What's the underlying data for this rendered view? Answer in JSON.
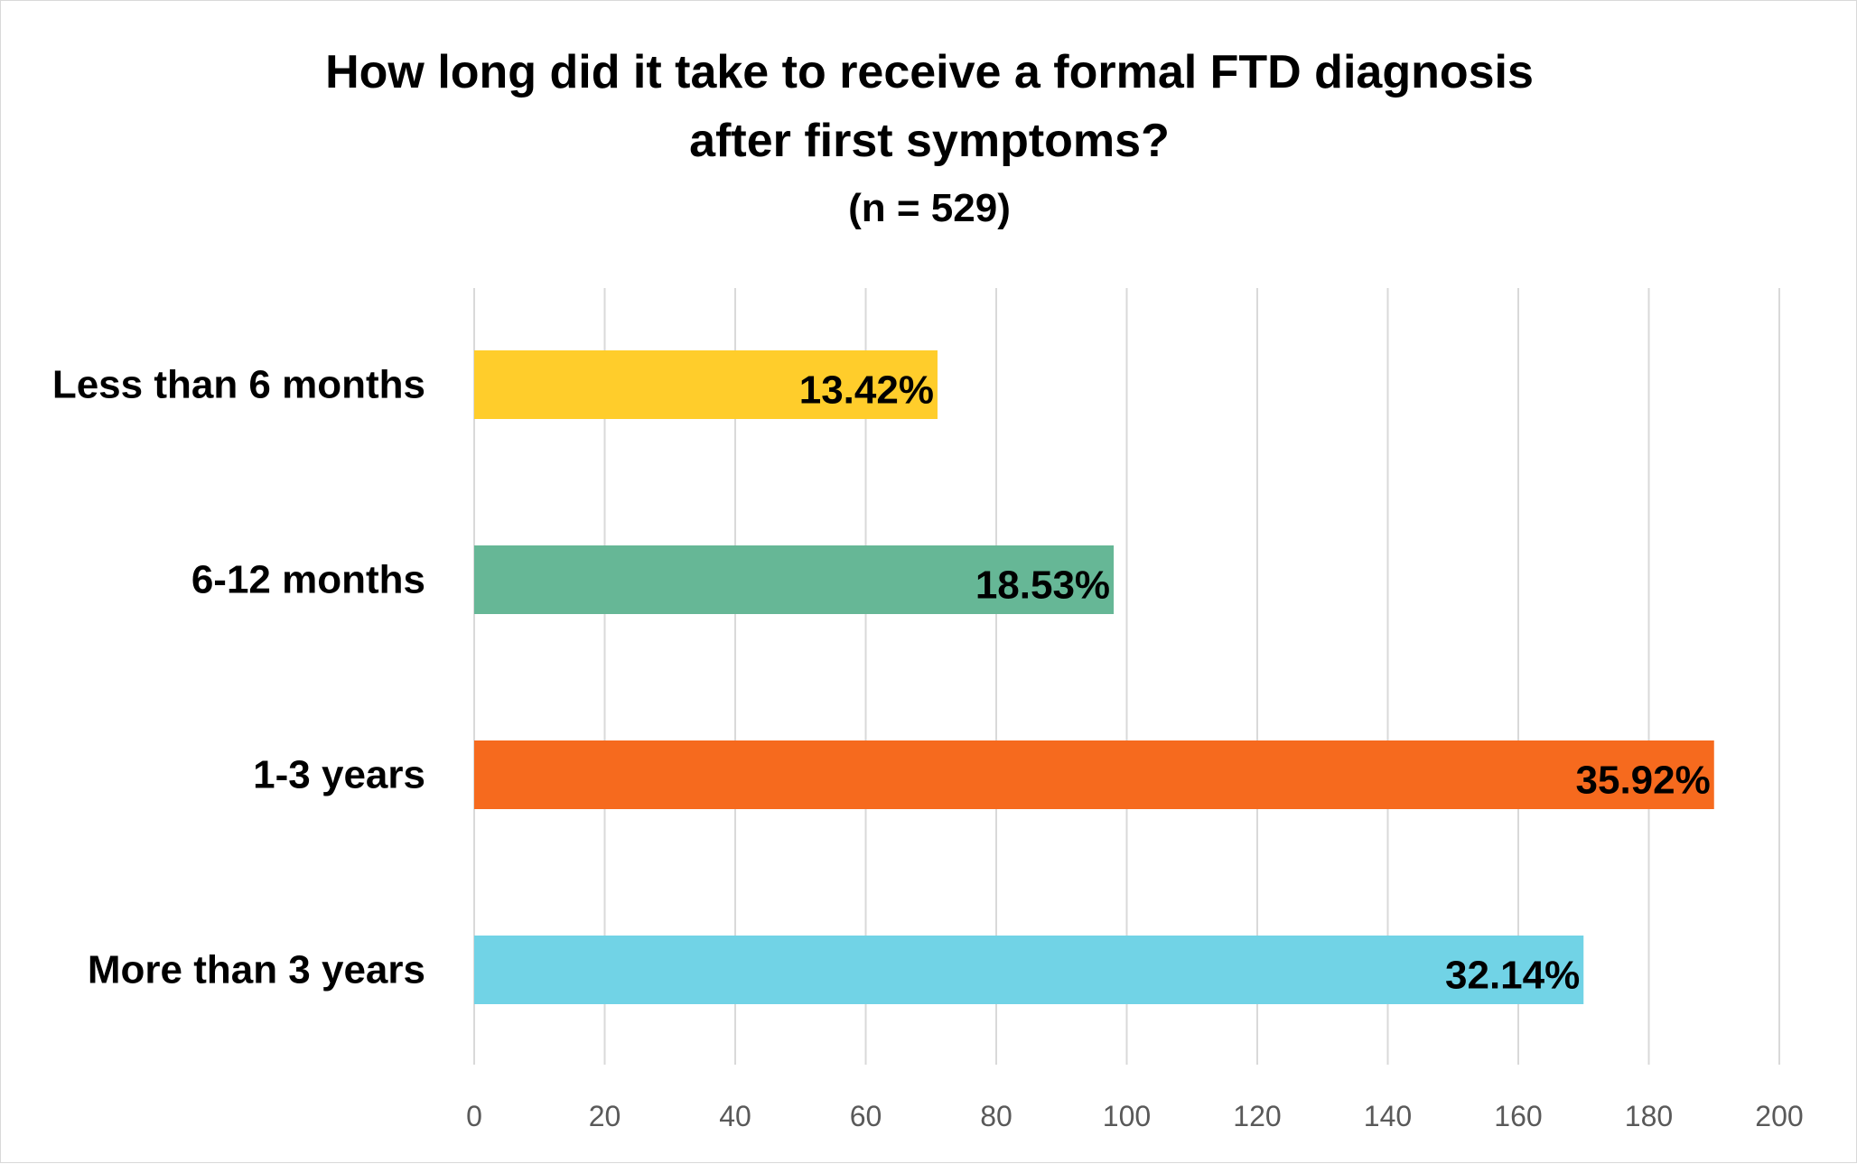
{
  "chart_data": {
    "type": "bar",
    "orientation": "horizontal",
    "title_lines": [
      "How long did it take to receive a formal FTD diagnosis",
      "after first symptoms?"
    ],
    "subtitle": "(n = 529)",
    "categories": [
      "Less than 6 months",
      "6-12 months",
      "1-3 years",
      "More than 3 years"
    ],
    "values": [
      71,
      98,
      190,
      170
    ],
    "data_labels": [
      "13.42%",
      "18.53%",
      "35.92%",
      "32.14%"
    ],
    "colors": [
      "#FFCD2B",
      "#66B796",
      "#F66A1E",
      "#71D3E6"
    ],
    "xlim": [
      0,
      200
    ],
    "xticks": [
      0,
      20,
      40,
      60,
      80,
      100,
      120,
      140,
      160,
      180,
      200
    ],
    "grid": true,
    "legend": "none"
  }
}
